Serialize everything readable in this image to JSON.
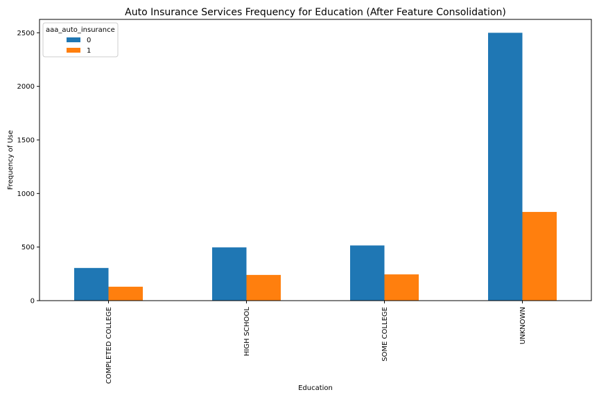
{
  "chart_data": {
    "type": "bar",
    "title": "Auto Insurance Services Frequency for Education  (After Feature Consolidation)",
    "xlabel": "Education",
    "ylabel": "Frequency of Use",
    "categories": [
      "COMPLETED COLLEGE",
      "HIGH SCHOOL",
      "SOME COLLEGE",
      "UNKNOWN"
    ],
    "series": [
      {
        "name": "0",
        "values": [
          305,
          497,
          515,
          2500
        ],
        "color": "#1f77b4"
      },
      {
        "name": "1",
        "values": [
          130,
          240,
          245,
          828
        ],
        "color": "#ff7f0e"
      }
    ],
    "ylim": [
      0,
      2625
    ],
    "yticks": [
      0,
      500,
      1000,
      1500,
      2000,
      2500
    ],
    "legend": {
      "title": "aaa_auto_insurance",
      "placement": "top-left"
    },
    "grid": false
  }
}
